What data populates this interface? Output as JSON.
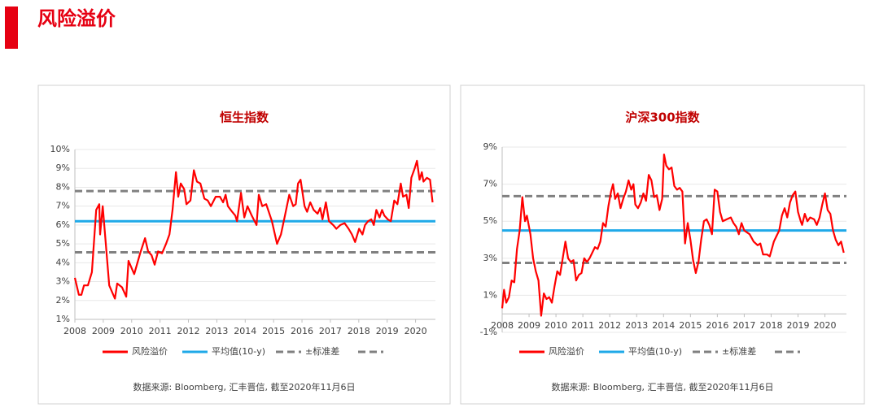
{
  "page_title": "风险溢价",
  "chart_data": [
    {
      "type": "line",
      "title": "恒生指数",
      "source": "数据来源: Bloomberg, 汇丰晋信, 截至2020年11月6日",
      "xlim": [
        2008,
        2020.7
      ],
      "xticks": [
        2008,
        2009,
        2010,
        2011,
        2012,
        2013,
        2014,
        2015,
        2016,
        2017,
        2018,
        2019,
        2020
      ],
      "ylim": [
        1,
        10
      ],
      "yticks": [
        {
          "value": 1,
          "label": "1%"
        },
        {
          "value": 2,
          "label": "2%"
        },
        {
          "value": 3,
          "label": "3%"
        },
        {
          "value": 4,
          "label": "4%"
        },
        {
          "value": 5,
          "label": "5%"
        },
        {
          "value": 6,
          "label": "6%"
        },
        {
          "value": 7,
          "label": "7%"
        },
        {
          "value": 8,
          "label": "8%"
        },
        {
          "value": 9,
          "label": "9%"
        },
        {
          "value": 10,
          "label": "10%"
        }
      ],
      "grid": true,
      "series": [
        {
          "name": "风险溢价",
          "color": "#ff0000",
          "x": [
            2008.0,
            2008.14,
            2008.23,
            2008.32,
            2008.46,
            2008.6,
            2008.75,
            2008.86,
            2008.89,
            2008.98,
            2009.21,
            2009.41,
            2009.49,
            2009.66,
            2009.81,
            2009.89,
            2010.09,
            2010.3,
            2010.47,
            2010.58,
            2010.7,
            2010.81,
            2010.93,
            2011.07,
            2011.21,
            2011.33,
            2011.44,
            2011.56,
            2011.64,
            2011.73,
            2011.85,
            2011.93,
            2012.07,
            2012.19,
            2012.3,
            2012.42,
            2012.56,
            2012.68,
            2012.79,
            2012.96,
            2013.11,
            2013.22,
            2013.31,
            2013.39,
            2013.54,
            2013.65,
            2013.71,
            2013.85,
            2013.97,
            2014.08,
            2014.23,
            2014.4,
            2014.48,
            2014.6,
            2014.74,
            2014.94,
            2015.12,
            2015.26,
            2015.4,
            2015.55,
            2015.69,
            2015.78,
            2015.86,
            2015.95,
            2016.09,
            2016.18,
            2016.29,
            2016.41,
            2016.55,
            2016.64,
            2016.72,
            2016.84,
            2016.95,
            2017.1,
            2017.21,
            2017.35,
            2017.5,
            2017.64,
            2017.76,
            2017.87,
            2018.01,
            2018.13,
            2018.22,
            2018.33,
            2018.44,
            2018.53,
            2018.62,
            2018.73,
            2018.82,
            2018.9,
            2019.02,
            2019.13,
            2019.25,
            2019.36,
            2019.48,
            2019.56,
            2019.68,
            2019.76,
            2019.85,
            2019.97,
            2020.05,
            2020.14,
            2020.22,
            2020.28,
            2020.4,
            2020.51,
            2020.6
          ],
          "values": [
            3.2,
            2.3,
            2.3,
            2.8,
            2.8,
            3.5,
            6.8,
            7.1,
            5.5,
            7.0,
            2.8,
            2.1,
            2.9,
            2.7,
            2.2,
            4.1,
            3.4,
            4.5,
            5.3,
            4.6,
            4.4,
            3.9,
            4.6,
            4.5,
            5.0,
            5.5,
            6.8,
            8.8,
            7.5,
            8.2,
            7.9,
            7.1,
            7.3,
            8.9,
            8.3,
            8.2,
            7.4,
            7.3,
            7.0,
            7.5,
            7.5,
            7.2,
            7.6,
            7.0,
            6.7,
            6.5,
            6.2,
            7.7,
            6.4,
            7.0,
            6.5,
            6.0,
            7.6,
            7.0,
            7.1,
            6.2,
            5.0,
            5.5,
            6.5,
            7.6,
            7.0,
            7.1,
            8.2,
            8.4,
            7.0,
            6.7,
            7.2,
            6.8,
            6.6,
            6.9,
            6.3,
            7.2,
            6.2,
            6.0,
            5.8,
            6.0,
            6.1,
            5.8,
            5.5,
            5.1,
            5.8,
            5.5,
            6.0,
            6.2,
            6.3,
            6.0,
            6.8,
            6.4,
            6.8,
            6.5,
            6.3,
            6.2,
            7.3,
            7.1,
            8.2,
            7.5,
            7.6,
            6.9,
            8.5,
            9.0,
            9.4,
            8.4,
            8.8,
            8.3,
            8.5,
            8.4,
            7.2
          ]
        }
      ],
      "hlines": [
        {
          "name": "平均值(10-y)",
          "color": "#1fa9e8",
          "value": 6.2
        },
        {
          "name": "±标准差",
          "color": "#808080",
          "value": 7.8,
          "dashed": true
        },
        {
          "color": "#808080",
          "value": 4.55,
          "dashed": true
        }
      ]
    },
    {
      "type": "line",
      "title": "沪深300指数",
      "source": "数据来源: Bloomberg, 汇丰晋信, 截至2020年11月6日",
      "xlim": [
        2008,
        2020.8
      ],
      "xticks": [
        2008,
        2009,
        2010,
        2011,
        2012,
        2013,
        2014,
        2015,
        2016,
        2017,
        2018,
        2019,
        2020
      ],
      "ylim": [
        -1,
        9
      ],
      "yticks": [
        {
          "value": -1,
          "label": "-1%"
        },
        {
          "value": 1,
          "label": "1%"
        },
        {
          "value": 3,
          "label": "3%"
        },
        {
          "value": 5,
          "label": "5%"
        },
        {
          "value": 7,
          "label": "7%"
        },
        {
          "value": 9,
          "label": "9%"
        }
      ],
      "grid": true,
      "series": [
        {
          "name": "风险溢价",
          "color": "#ff0000",
          "x": [
            2008.0,
            2008.07,
            2008.15,
            2008.25,
            2008.35,
            2008.45,
            2008.55,
            2008.65,
            2008.75,
            2008.85,
            2008.92,
            2009.05,
            2009.15,
            2009.25,
            2009.35,
            2009.45,
            2009.55,
            2009.65,
            2009.75,
            2009.85,
            2009.95,
            2010.05,
            2010.15,
            2010.25,
            2010.35,
            2010.45,
            2010.55,
            2010.65,
            2010.75,
            2010.85,
            2010.95,
            2011.05,
            2011.15,
            2011.25,
            2011.35,
            2011.45,
            2011.55,
            2011.65,
            2011.75,
            2011.85,
            2011.95,
            2012.05,
            2012.12,
            2012.2,
            2012.3,
            2012.4,
            2012.5,
            2012.6,
            2012.7,
            2012.8,
            2012.88,
            2012.95,
            2013.05,
            2013.15,
            2013.25,
            2013.35,
            2013.45,
            2013.55,
            2013.65,
            2013.75,
            2013.85,
            2013.95,
            2014.02,
            2014.1,
            2014.2,
            2014.3,
            2014.4,
            2014.5,
            2014.6,
            2014.7,
            2014.8,
            2014.9,
            2015.0,
            2015.1,
            2015.2,
            2015.3,
            2015.4,
            2015.5,
            2015.6,
            2015.7,
            2015.8,
            2015.9,
            2016.0,
            2016.1,
            2016.2,
            2016.35,
            2016.5,
            2016.6,
            2016.7,
            2016.8,
            2016.9,
            2017.0,
            2017.2,
            2017.35,
            2017.5,
            2017.6,
            2017.7,
            2017.85,
            2017.95,
            2018.1,
            2018.2,
            2018.3,
            2018.4,
            2018.5,
            2018.6,
            2018.7,
            2018.8,
            2018.9,
            2019.0,
            2019.1,
            2019.15,
            2019.25,
            2019.35,
            2019.45,
            2019.6,
            2019.7,
            2019.8,
            2019.9,
            2020.0,
            2020.1,
            2020.2,
            2020.3,
            2020.4,
            2020.5,
            2020.6,
            2020.7
          ],
          "values": [
            0.3,
            1.3,
            0.6,
            0.9,
            1.8,
            1.7,
            3.5,
            4.5,
            6.3,
            5.0,
            5.3,
            4.3,
            3.0,
            2.3,
            1.8,
            -0.1,
            1.1,
            0.8,
            0.9,
            0.6,
            1.5,
            2.3,
            2.1,
            3.0,
            3.9,
            3.0,
            2.8,
            2.9,
            1.8,
            2.1,
            2.2,
            3.0,
            2.8,
            3.0,
            3.3,
            3.6,
            3.5,
            3.9,
            4.9,
            4.7,
            5.8,
            6.6,
            7.0,
            6.2,
            6.5,
            5.7,
            6.2,
            6.6,
            7.2,
            6.7,
            7.0,
            5.9,
            5.7,
            6.0,
            6.5,
            6.1,
            7.5,
            7.2,
            6.3,
            6.4,
            5.6,
            6.2,
            8.6,
            8.0,
            7.8,
            7.9,
            6.9,
            6.7,
            6.8,
            6.6,
            3.8,
            4.9,
            4.0,
            2.9,
            2.2,
            2.8,
            4.0,
            5.0,
            5.1,
            4.8,
            4.3,
            6.7,
            6.6,
            5.5,
            5.0,
            5.1,
            5.2,
            4.9,
            4.7,
            4.3,
            4.9,
            4.5,
            4.3,
            3.9,
            3.7,
            3.8,
            3.2,
            3.2,
            3.1,
            3.9,
            4.2,
            4.5,
            5.3,
            5.7,
            5.2,
            6.0,
            6.4,
            6.6,
            5.5,
            5.0,
            4.8,
            5.4,
            5.0,
            5.2,
            5.1,
            4.8,
            5.2,
            5.9,
            6.5,
            5.6,
            5.4,
            4.5,
            4.0,
            3.7,
            3.9,
            3.3
          ]
        }
      ],
      "hlines": [
        {
          "name": "平均值(10-y)",
          "color": "#1fa9e8",
          "value": 4.5
        },
        {
          "name": "±标准差",
          "color": "#808080",
          "value": 6.35,
          "dashed": true
        },
        {
          "color": "#808080",
          "value": 2.75,
          "dashed": true
        }
      ]
    }
  ]
}
